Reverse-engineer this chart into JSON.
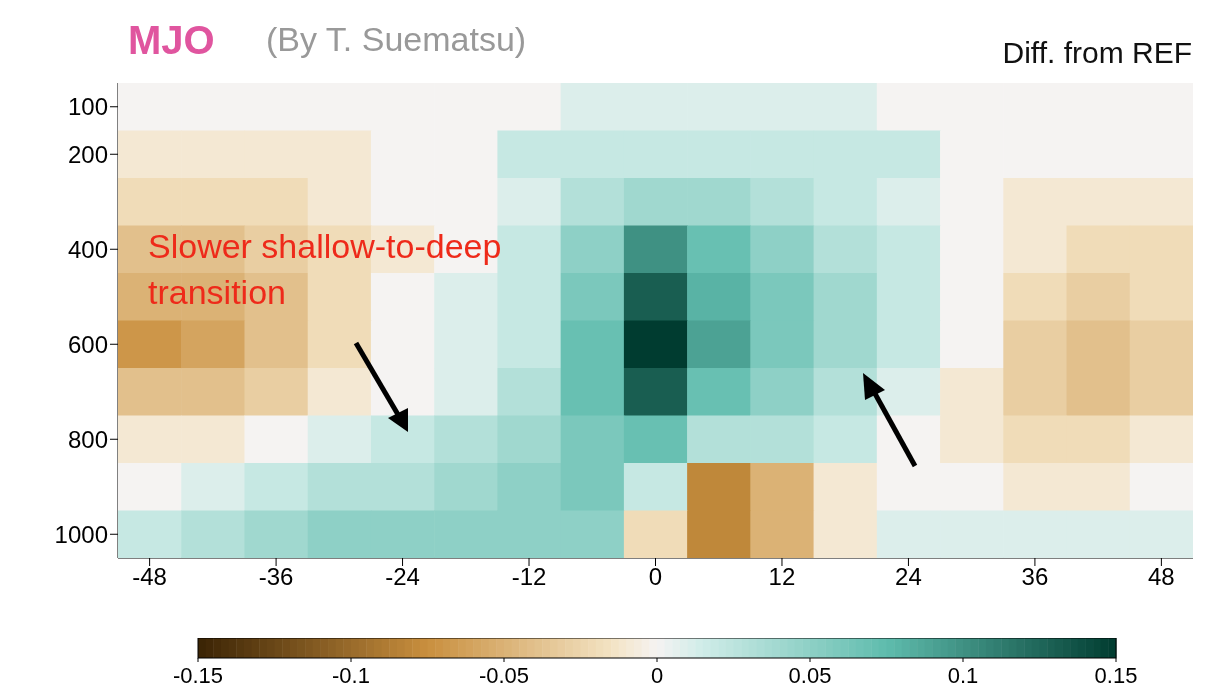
{
  "chart_data": {
    "type": "heatmap",
    "title": "MJO",
    "subtitle": "(By T. Suematsu)",
    "annotations": [
      "Diff. from REF",
      "Slower shallow-to-deep transition"
    ],
    "categories": [
      "-48",
      null,
      "-36",
      null,
      "-24",
      null,
      "-12",
      null,
      "0",
      null,
      "12",
      null,
      "24",
      null,
      "36",
      null,
      "48"
    ],
    "y_categories": [
      "100",
      "200",
      null,
      "400",
      null,
      "600",
      null,
      "800",
      null,
      "1000"
    ],
    "cells": [
      [
        0,
        0,
        0,
        0,
        0,
        0,
        0,
        0.01,
        0.01,
        0.01,
        0.01,
        0.01,
        0,
        0,
        0,
        0,
        0
      ],
      [
        -0.01,
        -0.01,
        -0.01,
        -0.01,
        0,
        0,
        0.02,
        0.02,
        0.02,
        0.02,
        0.02,
        0.02,
        0.02,
        0,
        0,
        0,
        0
      ],
      [
        -0.02,
        -0.02,
        -0.02,
        -0.01,
        0,
        0,
        0.01,
        0.03,
        0.04,
        0.04,
        0.03,
        0.02,
        0.01,
        0,
        -0.01,
        -0.01,
        -0.01
      ],
      [
        -0.04,
        -0.04,
        -0.03,
        -0.02,
        -0.01,
        0,
        0.02,
        0.05,
        0.1,
        0.07,
        0.05,
        0.03,
        0.02,
        0,
        -0.01,
        -0.02,
        -0.02
      ],
      [
        -0.05,
        -0.05,
        -0.04,
        -0.02,
        0,
        0.01,
        0.02,
        0.06,
        0.13,
        0.08,
        0.06,
        0.04,
        0.02,
        0,
        -0.02,
        -0.03,
        -0.02
      ],
      [
        -0.07,
        -0.06,
        -0.04,
        -0.02,
        0,
        0.01,
        0.02,
        0.07,
        0.15,
        0.09,
        0.06,
        0.04,
        0.02,
        0,
        -0.03,
        -0.04,
        -0.03
      ],
      [
        -0.04,
        -0.04,
        -0.03,
        -0.01,
        0,
        0.01,
        0.03,
        0.07,
        0.13,
        0.07,
        0.05,
        0.03,
        0.01,
        -0.01,
        -0.03,
        -0.04,
        -0.03
      ],
      [
        -0.01,
        -0.01,
        0,
        0.01,
        0.02,
        0.03,
        0.04,
        0.06,
        0.07,
        0.03,
        0.03,
        0.02,
        0,
        -0.01,
        -0.02,
        -0.02,
        -0.01
      ],
      [
        0,
        0.01,
        0.02,
        0.03,
        0.03,
        0.04,
        0.05,
        0.06,
        0.02,
        -0.08,
        -0.05,
        -0.01,
        0,
        0,
        -0.01,
        -0.01,
        0
      ],
      [
        0.02,
        0.03,
        0.04,
        0.05,
        0.05,
        0.05,
        0.05,
        0.05,
        -0.02,
        -0.08,
        -0.05,
        -0.01,
        0.01,
        0.01,
        0.01,
        0.01,
        0.01
      ]
    ],
    "clim": [
      -0.15,
      0.15
    ],
    "cticks": [
      -0.15,
      -0.1,
      -0.05,
      0,
      0.05,
      0.1,
      0.15
    ]
  }
}
